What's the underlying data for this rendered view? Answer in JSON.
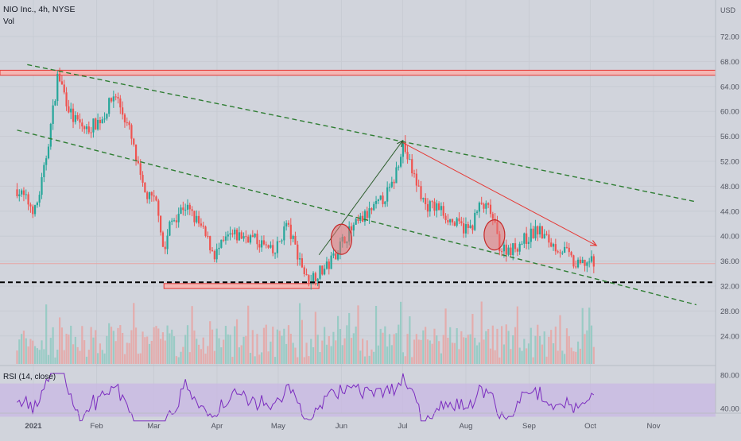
{
  "header": {
    "symbol": "NIO Inc., 4h, NYSE",
    "indicator": "Vol",
    "currency": "USD"
  },
  "rsi_pane": {
    "label": "RSI (14, close)",
    "ticks": [
      "80.00",
      "40.00"
    ]
  },
  "colors": {
    "background": "#d1d4dc",
    "up": "#26a69a",
    "down": "#ef5350",
    "rsi_line": "#7b2cbf",
    "rsi_band": "#c9b6e4",
    "trend_green": "#2e7d32",
    "resistance_red": "#e53935"
  },
  "chart_data": {
    "type": "candlestick",
    "ylim": [
      22,
      76
    ],
    "y_ticks": [
      "72.00",
      "68.00",
      "64.00",
      "60.00",
      "56.00",
      "52.00",
      "48.00",
      "44.00",
      "40.00",
      "36.00",
      "32.00",
      "28.00",
      "24.00"
    ],
    "x_ticks": [
      "2021",
      "Feb",
      "Mar",
      "Apr",
      "May",
      "Jun",
      "Jul",
      "Aug",
      "Sep",
      "Oct",
      "Nov"
    ],
    "last_price": 35.6,
    "price_path": [
      {
        "t": "2020-12-24",
        "p": 47.5
      },
      {
        "t": "2021-01-02",
        "p": 44.0
      },
      {
        "t": "2021-01-06",
        "p": 50.0
      },
      {
        "t": "2021-01-11",
        "p": 61.0
      },
      {
        "t": "2021-01-13",
        "p": 66.0
      },
      {
        "t": "2021-01-20",
        "p": 59.0
      },
      {
        "t": "2021-01-27",
        "p": 57.0
      },
      {
        "t": "2021-02-04",
        "p": 59.0
      },
      {
        "t": "2021-02-10",
        "p": 63.0
      },
      {
        "t": "2021-02-17",
        "p": 57.0
      },
      {
        "t": "2021-02-24",
        "p": 47.0
      },
      {
        "t": "2021-03-03",
        "p": 45.0
      },
      {
        "t": "2021-03-06",
        "p": 37.0
      },
      {
        "t": "2021-03-09",
        "p": 42.0
      },
      {
        "t": "2021-03-16",
        "p": 45.0
      },
      {
        "t": "2021-03-23",
        "p": 42.0
      },
      {
        "t": "2021-03-31",
        "p": 37.0
      },
      {
        "t": "2021-04-07",
        "p": 40.0
      },
      {
        "t": "2021-04-16",
        "p": 40.0
      },
      {
        "t": "2021-04-22",
        "p": 39.0
      },
      {
        "t": "2021-04-29",
        "p": 37.0
      },
      {
        "t": "2021-05-05",
        "p": 42.0
      },
      {
        "t": "2021-05-12",
        "p": 36.0
      },
      {
        "t": "2021-05-15",
        "p": 33.0
      },
      {
        "t": "2021-05-25",
        "p": 35.0
      },
      {
        "t": "2021-06-03",
        "p": 40.0
      },
      {
        "t": "2021-06-12",
        "p": 43.0
      },
      {
        "t": "2021-06-19",
        "p": 45.0
      },
      {
        "t": "2021-06-26",
        "p": 48.0
      },
      {
        "t": "2021-07-01",
        "p": 55.0
      },
      {
        "t": "2021-07-06",
        "p": 50.0
      },
      {
        "t": "2021-07-12",
        "p": 45.0
      },
      {
        "t": "2021-07-19",
        "p": 44.5
      },
      {
        "t": "2021-07-26",
        "p": 42.0
      },
      {
        "t": "2021-08-03",
        "p": 41.0
      },
      {
        "t": "2021-08-08",
        "p": 45.0
      },
      {
        "t": "2021-08-13",
        "p": 44.0
      },
      {
        "t": "2021-08-18",
        "p": 38.0
      },
      {
        "t": "2021-08-24",
        "p": 38.0
      },
      {
        "t": "2021-09-01",
        "p": 40.0
      },
      {
        "t": "2021-09-05",
        "p": 41.0
      },
      {
        "t": "2021-09-13",
        "p": 38.5
      },
      {
        "t": "2021-09-19",
        "p": 37.5
      },
      {
        "t": "2021-09-24",
        "p": 35.0
      },
      {
        "t": "2021-09-30",
        "p": 36.0
      },
      {
        "t": "2021-10-03",
        "p": 35.5
      }
    ],
    "drawings": {
      "resistance_zone": [
        65.8,
        66.6
      ],
      "support_line": 32.6,
      "support_zone": {
        "from": "2021-03-06",
        "to": "2021-05-21",
        "range": [
          31.6,
          32.4
        ]
      },
      "upper_trend": {
        "from": {
          "t": "2020-12-29",
          "p": 67.5
        },
        "to": {
          "t": "2021-11-22",
          "p": 45.5
        }
      },
      "lower_trend": {
        "from": {
          "t": "2020-12-24",
          "p": 57.0
        },
        "to": {
          "t": "2021-11-22",
          "p": 29.0
        }
      },
      "up_arrow": {
        "from": {
          "t": "2021-05-21",
          "p": 37.0
        },
        "to": {
          "t": "2021-07-01",
          "p": 55.3
        }
      },
      "down_arrow": {
        "from": {
          "t": "2021-07-01",
          "p": 55.0
        },
        "to": {
          "t": "2021-10-04",
          "p": 38.5
        }
      },
      "circles": [
        {
          "t": "2021-06-01",
          "p": 39.5
        },
        {
          "t": "2021-08-15",
          "p": 40.2
        }
      ]
    }
  }
}
